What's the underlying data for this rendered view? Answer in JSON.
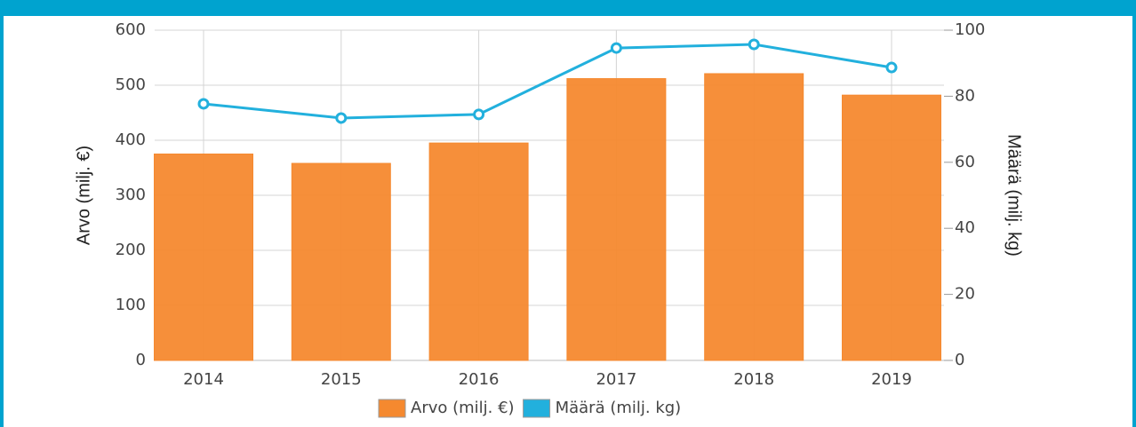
{
  "chart_data": {
    "type": "bar-line",
    "categories": [
      "2014",
      "2015",
      "2016",
      "2017",
      "2018",
      "2019"
    ],
    "series": [
      {
        "name": "Arvo (milj. €)",
        "color": "#f5892f",
        "type": "bar",
        "values": [
          375,
          358,
          395,
          512,
          521,
          482
        ]
      },
      {
        "name": "Määrä (milj. kg)",
        "color": "#22b0dd",
        "type": "line",
        "axis": "y2",
        "values": [
          77.7,
          73.4,
          74.5,
          94.6,
          95.7,
          88.7
        ]
      }
    ],
    "ylabel": "Arvo (milj. €)",
    "y2label": "Määrä (milj. kg)",
    "ylim": [
      0,
      600
    ],
    "yticks": [
      0,
      100,
      200,
      300,
      400,
      500,
      600
    ],
    "y2lim": [
      0,
      100
    ],
    "y2ticks": [
      0,
      20,
      40,
      60,
      80,
      100
    ],
    "grid": true,
    "legend": "bottom"
  }
}
